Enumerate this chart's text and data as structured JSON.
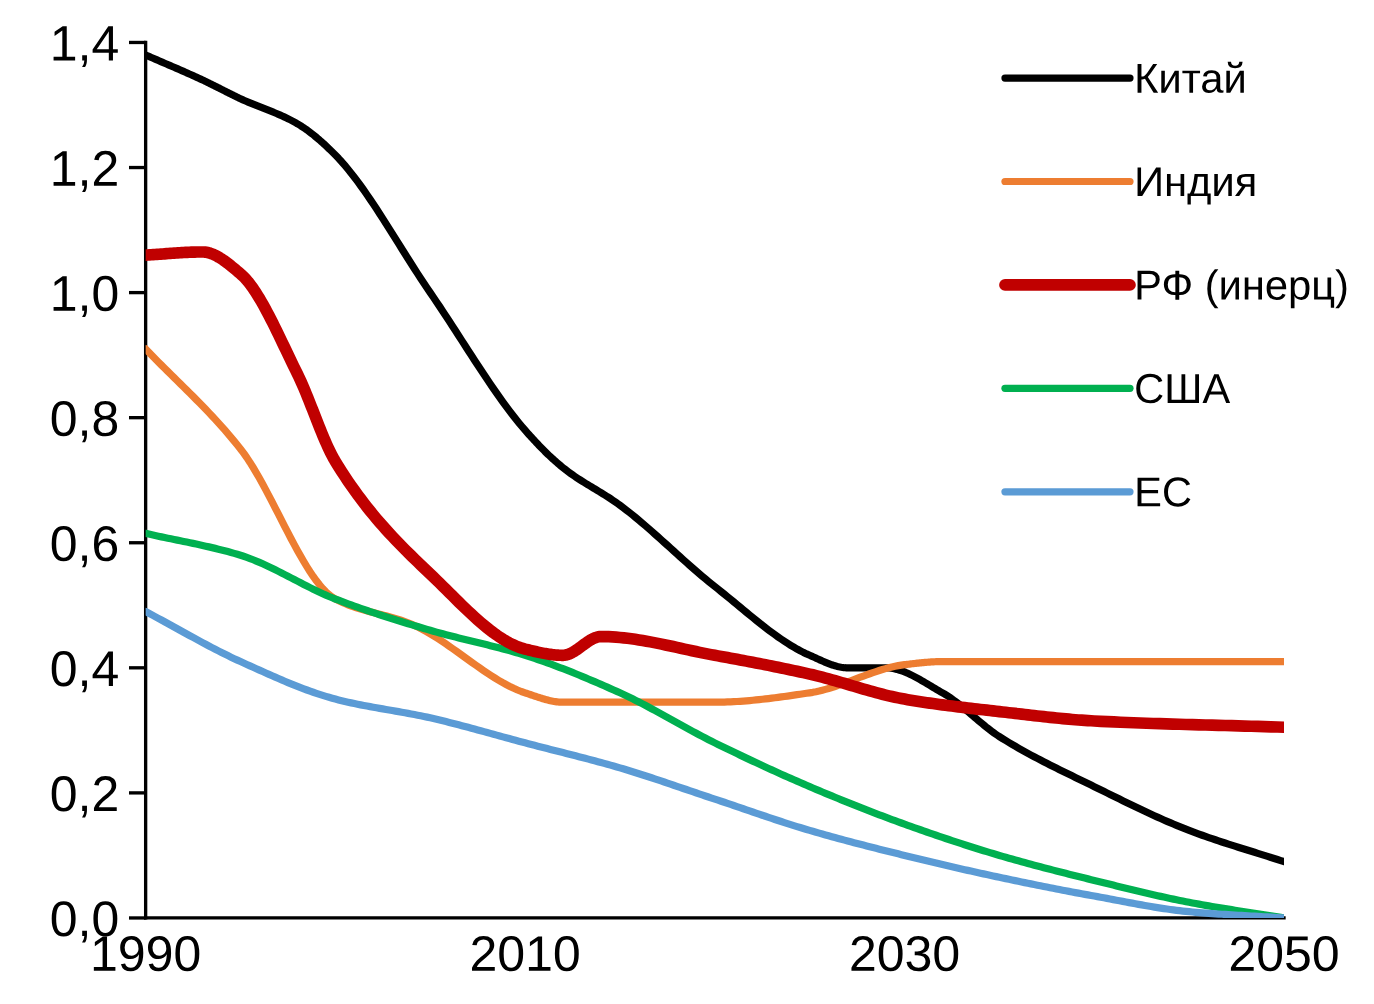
{
  "chart_data": {
    "type": "line",
    "series": [
      {
        "name": "Китай",
        "color": "#000000",
        "x": [
          1990,
          1993,
          1995,
          1998,
          2000,
          2005,
          2010,
          2012,
          2015,
          2020,
          2025,
          2027,
          2029,
          2032,
          2035,
          2040,
          2045,
          2050
        ],
        "values": [
          1.38,
          1.34,
          1.31,
          1.27,
          1.22,
          1.0,
          0.78,
          0.72,
          0.66,
          0.53,
          0.42,
          0.4,
          0.4,
          0.36,
          0.29,
          0.21,
          0.14,
          0.09
        ]
      },
      {
        "name": "Индия",
        "color": "#ed7d31",
        "x": [
          1990,
          1995,
          2000,
          2004,
          2010,
          2012,
          2020,
          2025,
          2030,
          2032,
          2050
        ],
        "values": [
          0.91,
          0.75,
          0.51,
          0.47,
          0.36,
          0.345,
          0.345,
          0.36,
          0.405,
          0.41,
          0.41
        ]
      },
      {
        "name": "РФ (инерц)",
        "color": "#c00000",
        "x": [
          1990,
          1993,
          1995,
          1998,
          2000,
          2005,
          2010,
          2012,
          2014,
          2020,
          2025,
          2030,
          2035,
          2040,
          2050
        ],
        "values": [
          1.06,
          1.065,
          1.03,
          0.87,
          0.73,
          0.55,
          0.43,
          0.42,
          0.45,
          0.42,
          0.39,
          0.35,
          0.33,
          0.315,
          0.305
        ]
      },
      {
        "name": "США",
        "color": "#00b050",
        "x": [
          1990,
          1995,
          2000,
          2005,
          2010,
          2015,
          2020,
          2025,
          2030,
          2035,
          2040,
          2045,
          2050
        ],
        "values": [
          0.615,
          0.58,
          0.51,
          0.46,
          0.42,
          0.36,
          0.28,
          0.21,
          0.15,
          0.1,
          0.06,
          0.025,
          0.0
        ]
      },
      {
        "name": "ЕС",
        "color": "#5b9bd5",
        "x": [
          1990,
          1995,
          2000,
          2005,
          2010,
          2015,
          2020,
          2025,
          2030,
          2035,
          2040,
          2045,
          2050
        ],
        "values": [
          0.49,
          0.41,
          0.35,
          0.32,
          0.28,
          0.24,
          0.19,
          0.14,
          0.1,
          0.065,
          0.035,
          0.01,
          0.0
        ]
      }
    ],
    "xlim": [
      1990,
      2050
    ],
    "xticks": [
      1990,
      2010,
      2030,
      2050
    ],
    "ylim": [
      0,
      1.4
    ],
    "yticks": [
      {
        "value": 0,
        "label": "0,0"
      },
      {
        "value": 0.2,
        "label": "0,2"
      },
      {
        "value": 0.4,
        "label": "0,4"
      },
      {
        "value": 0.6,
        "label": "0,6"
      },
      {
        "value": 0.8,
        "label": "0,8"
      },
      {
        "value": 1.0,
        "label": "1,0"
      },
      {
        "value": 1.2,
        "label": "1,2"
      },
      {
        "value": 1.4,
        "label": "1,4"
      }
    ],
    "legend": "top right",
    "grid": false,
    "line_style": "solid",
    "marker": "none"
  }
}
